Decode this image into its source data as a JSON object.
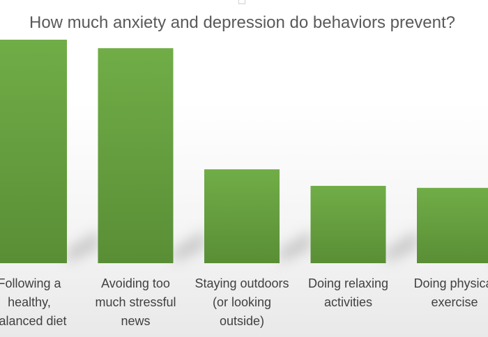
{
  "chart_data": {
    "type": "bar",
    "title": "How much anxiety and depression do behaviors prevent?",
    "categories": [
      "Following a healthy, balanced diet",
      "Avoiding too much stressful news",
      "Staying outdoors (or looking outside)",
      "Doing relaxing activities",
      "Doing physical exercise"
    ],
    "category_lines": [
      [
        "Following a",
        "healthy,",
        "balanced diet"
      ],
      [
        "Avoiding too",
        "much stressful",
        "news"
      ],
      [
        "Staying outdoors",
        "(or looking",
        "outside)"
      ],
      [
        "Doing relaxing",
        "activities"
      ],
      [
        "Doing physical",
        "exercise"
      ]
    ],
    "values": [
      1.0,
      0.962,
      0.42,
      0.346,
      0.337
    ],
    "value_scale": "relative (no axis printed)",
    "xlabel": "",
    "ylabel": "",
    "grid": false,
    "legend": "none",
    "colors": {
      "bar_top": "#70AD47",
      "bar_bottom": "#5A8E36",
      "label_text": "#404040",
      "title_text": "#595959",
      "shadow": "#bdbdbd"
    }
  }
}
